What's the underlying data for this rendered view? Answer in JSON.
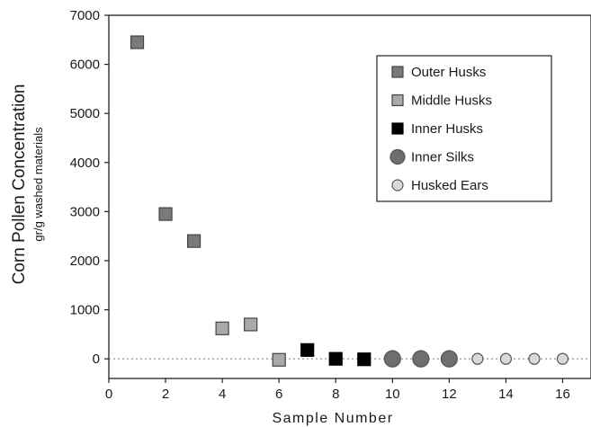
{
  "chart_data": {
    "type": "scatter",
    "xlabel": "Sample Number",
    "ylabel": "Corn Pollen Concentration",
    "ylabel_sub": "gr/g washed materials",
    "xlim": [
      0,
      17
    ],
    "ylim": [
      -400,
      7000
    ],
    "x_ticks": [
      0,
      2,
      4,
      6,
      8,
      10,
      12,
      14,
      16
    ],
    "y_ticks": [
      0,
      1000,
      2000,
      3000,
      4000,
      5000,
      6000,
      7000
    ],
    "zero_line": "dotted",
    "grid": false,
    "legend_position": "top-right",
    "series": [
      {
        "name": "Outer Husks",
        "marker": "square",
        "color": "#7a7a7a",
        "x": [
          1,
          2,
          3
        ],
        "y": [
          6450,
          2950,
          2400
        ]
      },
      {
        "name": "Middle Husks",
        "marker": "square",
        "color": "#a9a9a9",
        "x": [
          4,
          5,
          6
        ],
        "y": [
          620,
          700,
          -20
        ]
      },
      {
        "name": "Inner Husks",
        "marker": "square",
        "color": "#000000",
        "x": [
          7,
          8,
          9
        ],
        "y": [
          180,
          0,
          -10
        ]
      },
      {
        "name": "Inner Silks",
        "marker": "circle-large",
        "color": "#6e6e6e",
        "x": [
          10,
          11,
          12
        ],
        "y": [
          0,
          0,
          0
        ]
      },
      {
        "name": "Husked Ears",
        "marker": "circle-small",
        "color": "#d9d9d9",
        "x": [
          13,
          14,
          15,
          16
        ],
        "y": [
          0,
          0,
          0,
          0
        ]
      }
    ]
  }
}
